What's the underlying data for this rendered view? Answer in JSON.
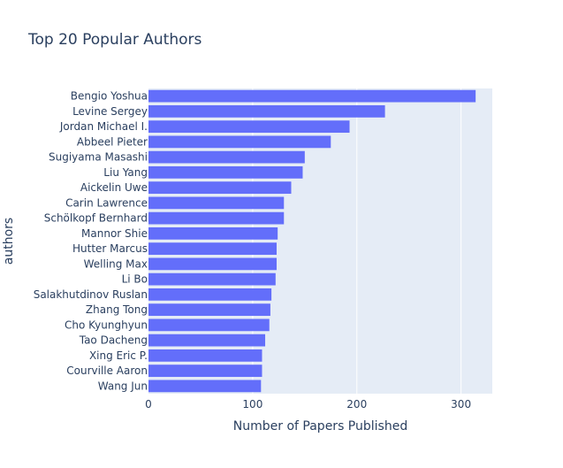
{
  "chart_data": {
    "type": "bar",
    "orientation": "horizontal",
    "title": "Top 20 Popular Authors",
    "xlabel": "Number of Papers Published",
    "ylabel": "authors",
    "xlim": [
      0,
      330
    ],
    "xticks": [
      0,
      100,
      200,
      300
    ],
    "grid": true,
    "categories": [
      "Bengio Yoshua",
      "Levine Sergey",
      "Jordan Michael I.",
      "Abbeel Pieter",
      "Sugiyama Masashi",
      "Liu Yang",
      "Aickelin Uwe",
      "Carin Lawrence",
      "Schölkopf Bernhard",
      "Mannor Shie",
      "Hutter Marcus",
      "Welling Max",
      "Li Bo",
      "Salakhutdinov Ruslan",
      "Zhang Tong",
      "Cho Kyunghyun",
      "Tao Dacheng",
      "Xing Eric P.",
      "Courville Aaron",
      "Wang Jun"
    ],
    "values": [
      314,
      227,
      193,
      175,
      150,
      148,
      137,
      130,
      130,
      124,
      123,
      123,
      122,
      118,
      117,
      116,
      112,
      109,
      109,
      108
    ],
    "colors": {
      "bar": "#636efa",
      "plot_bg": "#e5ecf6",
      "grid": "#ffffff",
      "text": "#2a3f5f"
    }
  }
}
